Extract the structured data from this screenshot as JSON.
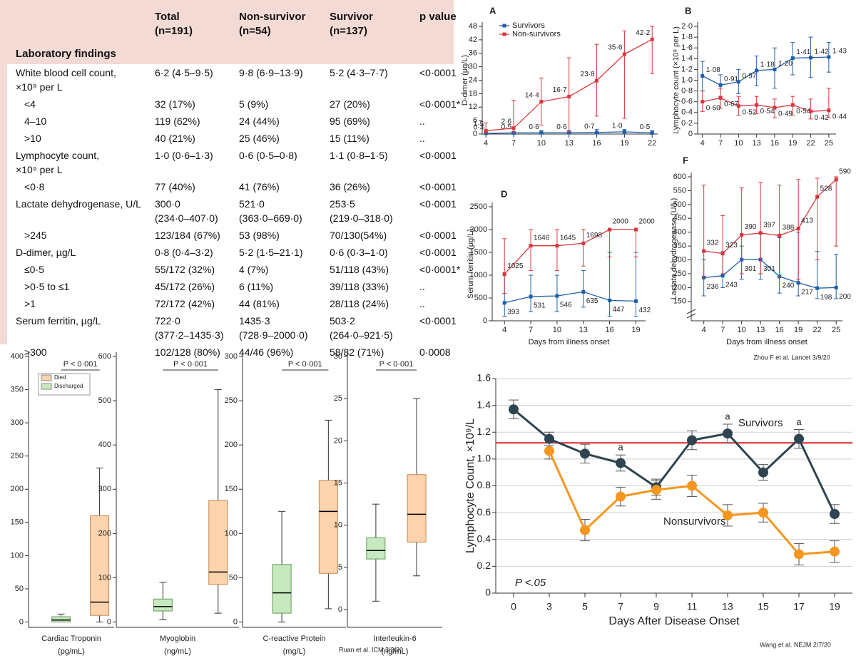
{
  "table": {
    "header": [
      "Total\n(n=191)",
      "Non-survivor\n(n=54)",
      "Survivor\n(n=137)",
      "p value"
    ],
    "section": "Laboratory findings",
    "rows": [
      [
        "White blood cell count,\n×10⁹ per L",
        "6·2 (4·5–9·5)",
        "9·8 (6·9–13·9)",
        "5·2 (4·3–7·7)",
        "<0·0001"
      ],
      [
        "<4",
        "32 (17%)",
        "5 (9%)",
        "27 (20%)",
        "<0·0001*"
      ],
      [
        "4–10",
        "119 (62%)",
        "24 (44%)",
        "95 (69%)",
        ".."
      ],
      [
        ">10",
        "40 (21%)",
        "25 (46%)",
        "15 (11%)",
        ".."
      ],
      [
        "Lymphocyte count,\n×10⁹ per L",
        "1·0 (0·6–1·3)",
        "0·6 (0·5–0·8)",
        "1·1 (0·8–1·5)",
        "<0·0001"
      ],
      [
        "<0·8",
        "77 (40%)",
        "41 (76%)",
        "36 (26%)",
        "<0·0001"
      ],
      [
        "Lactate dehydrogenase, U/L",
        "300·0\n(234·0–407·0)",
        "521·0\n(363·0–669·0)",
        "253·5\n(219·0–318·0)",
        "<0·0001"
      ],
      [
        ">245",
        "123/184 (67%)",
        "53 (98%)",
        "70/130(54%)",
        "<0·0001"
      ],
      [
        "D-dimer, µg/L",
        "0·8 (0·4–3·2)",
        "5·2 (1·5–21·1)",
        "0·6 (0·3–1·0)",
        "<0·0001"
      ],
      [
        "≤0·5",
        "55/172 (32%)",
        "4 (7%)",
        "51/118 (43%)",
        "<0·0001*"
      ],
      [
        ">0·5 to ≤1",
        "45/172 (26%)",
        "6 (11%)",
        "39/118 (33%)",
        ".."
      ],
      [
        ">1",
        "72/172 (42%)",
        "44 (81%)",
        "28/118 (24%)",
        ".."
      ],
      [
        "Serum ferritin, µg/L",
        "722·0\n(377·2–1435·3)",
        "1435·3\n(728·9–2000·0)",
        "503·2\n(264·0–921·5)",
        "<0·0001"
      ],
      [
        ">300",
        "102/128 (80%)",
        "44/46 (96%)",
        "58/82 (71%)",
        "0·0008"
      ]
    ]
  },
  "chart_data": [
    {
      "type": "line",
      "panel": "A",
      "ylabel": "D-dimer (μg/L)",
      "marker": "square",
      "legend": "upper left",
      "x": [
        4,
        7,
        10,
        13,
        16,
        19,
        22
      ],
      "xlim": [
        3.6,
        22.6
      ],
      "xticks": [
        4,
        7,
        10,
        13,
        16,
        19,
        22
      ],
      "ylim": [
        0,
        48
      ],
      "yticks": [
        0,
        6,
        12,
        18,
        24,
        30,
        36,
        42,
        48
      ],
      "series": [
        {
          "name": "Survivors",
          "color": "#1f5fa8",
          "values": [
            0.3,
            0.5,
            0.6,
            0.6,
            0.7,
            1.0,
            0.5
          ],
          "value_labels": [
            "0·3",
            "0·5",
            "0·6",
            "0·6",
            "0·7",
            "1·0",
            "0·5"
          ],
          "err_high": [
            1,
            1,
            1.5,
            1.5,
            2,
            2,
            1.5
          ],
          "err_low": [
            0,
            0.2,
            0.3,
            0.3,
            0.4,
            0.5,
            0.2
          ]
        },
        {
          "name": "Non-survivors",
          "color": "#d9363e",
          "values": [
            1.5,
            2.6,
            14.4,
            16.7,
            23.8,
            35.6,
            42.2
          ],
          "value_labels": [
            "1·5",
            "2·6",
            "14·4",
            "16·7",
            "23·8",
            "35·6",
            "42·2"
          ],
          "err_high": [
            5,
            15,
            25,
            34,
            40,
            46,
            48
          ],
          "err_low": [
            0.5,
            0.5,
            4,
            1,
            8,
            7,
            27
          ]
        }
      ]
    },
    {
      "type": "line",
      "panel": "B",
      "ylabel": "Lymphocyte count (×10⁹ per L)",
      "marker": "square",
      "x": [
        4,
        7,
        10,
        13,
        16,
        19,
        22,
        25
      ],
      "xlim": [
        3.2,
        26.2
      ],
      "xticks": [
        4,
        7,
        10,
        13,
        16,
        19,
        22,
        25
      ],
      "ylim": [
        0,
        2
      ],
      "yticks": [
        0,
        {
          "value": 0.2,
          "label": "0·2"
        },
        {
          "value": 0.4,
          "label": "0·4"
        },
        {
          "value": 0.6,
          "label": "0·6"
        },
        {
          "value": 0.8,
          "label": "0·8"
        },
        {
          "value": 1,
          "label": "1·0"
        },
        {
          "value": 1.2,
          "label": "1·2"
        },
        {
          "value": 1.4,
          "label": "1·4"
        },
        {
          "value": 1.6,
          "label": "1·6"
        },
        {
          "value": 1.8,
          "label": "1·8"
        },
        {
          "value": 2,
          "label": "2·0"
        }
      ],
      "series": [
        {
          "color": "#1f5fa8",
          "values": [
            1.08,
            0.91,
            0.97,
            1.18,
            1.2,
            1.41,
            1.42,
            1.43
          ],
          "value_labels": [
            "1·08",
            "0·91",
            "0·97",
            "1·18",
            "1·20",
            "1·41",
            "1·42",
            "1·43"
          ],
          "err_high": [
            1.35,
            1.1,
            1.2,
            1.45,
            1.6,
            1.7,
            1.8,
            1.7
          ],
          "err_low": [
            0.8,
            0.7,
            0.75,
            0.9,
            0.85,
            1.1,
            1.05,
            1.15
          ]
        },
        {
          "color": "#d9363e",
          "values": [
            0.6,
            0.67,
            0.52,
            0.54,
            0.49,
            0.54,
            0.42,
            0.44
          ],
          "value_labels": [
            "0·60",
            "0·67",
            "0·52",
            "0·54",
            "0·49",
            "0·54",
            "0·42",
            "0·44"
          ],
          "err_high": [
            0.8,
            0.85,
            0.7,
            0.7,
            0.65,
            0.7,
            0.65,
            0.85
          ],
          "err_low": [
            0.42,
            0.48,
            0.35,
            0.38,
            0.3,
            0.35,
            0.28,
            0.3
          ]
        }
      ]
    },
    {
      "type": "line",
      "panel": "D",
      "ylabel": "Serum ferritin (μg/L)",
      "xlabel": "Days from illness onset",
      "marker": "square",
      "x": [
        4,
        7,
        10,
        13,
        16,
        19
      ],
      "xlim": [
        2.6,
        20.1
      ],
      "xticks": [
        4,
        7,
        10,
        13,
        16,
        19
      ],
      "ylim": [
        0,
        2500
      ],
      "yticks": [
        0,
        500,
        1000,
        1500,
        2000,
        2500
      ],
      "series": [
        {
          "color": "#1f5fa8",
          "values": [
            393,
            531,
            546,
            635,
            447,
            432
          ],
          "err_high": [
            1000,
            1000,
            1000,
            1100,
            1500,
            1500
          ],
          "err_low": [
            100,
            200,
            200,
            300,
            100,
            100
          ]
        },
        {
          "color": "#d9363e",
          "values": [
            1025,
            1646,
            1645,
            1698,
            2000,
            2000
          ],
          "err_high": [
            1800,
            2000,
            2000,
            2000,
            2000,
            2000
          ],
          "err_low": [
            600,
            1100,
            1100,
            1200,
            1400,
            1400
          ]
        }
      ]
    },
    {
      "type": "line",
      "panel": "F",
      "ylabel": "Lactate dehydrogenase (U/L)",
      "xlabel": "Days from illness onset",
      "marker": "square",
      "source": "Zhou F et al.  Lancet 3/9/20",
      "x": [
        4,
        7,
        10,
        13,
        16,
        19,
        22,
        25
      ],
      "xlim": [
        2,
        26
      ],
      "xticks": [
        4,
        7,
        10,
        13,
        16,
        19,
        22,
        25
      ],
      "ylim": [
        80,
        600
      ],
      "yticks": [
        150,
        200,
        250,
        300,
        350,
        400,
        450,
        500,
        550,
        600
      ],
      "series": [
        {
          "color": "#1f5fa8",
          "values": [
            236,
            243,
            301,
            301,
            240,
            217,
            198,
            200
          ],
          "err_high": [
            300,
            330,
            350,
            400,
            380,
            400,
            330,
            320
          ],
          "err_low": [
            170,
            200,
            230,
            230,
            180,
            170,
            160,
            160
          ]
        },
        {
          "color": "#d9363e",
          "values": [
            332,
            323,
            390,
            397,
            388,
            413,
            528,
            590
          ],
          "err_high": [
            570,
            460,
            560,
            580,
            570,
            590,
            595,
            600
          ],
          "err_low": [
            240,
            250,
            250,
            250,
            240,
            230,
            300,
            350
          ]
        }
      ]
    },
    {
      "type": "box",
      "xlabel": [
        "Cardiac Troponin",
        "(pg/mL)"
      ],
      "annotation": "P < 0·001",
      "ylim": [
        -8,
        400
      ],
      "yticks": [
        0,
        50,
        100,
        150,
        200,
        250,
        300,
        350,
        400
      ],
      "series": [
        {
          "name": "Died",
          "color": "#fbd3ad",
          "whislo": 0,
          "q1": 10,
          "med": 30,
          "q3": 160,
          "whishi": 232
        },
        {
          "name": "Discharged",
          "color": "#c8e8c0",
          "whislo": 0,
          "q1": 0,
          "med": 3,
          "q3": 8,
          "whishi": 12
        }
      ]
    },
    {
      "type": "box",
      "xlabel": [
        "Myoglobin",
        "(ng/mL)"
      ],
      "annotation": "P < 0·001",
      "ylim": [
        -12,
        600
      ],
      "yticks": [
        0,
        100,
        200,
        300,
        400,
        500,
        600
      ],
      "series": [
        {
          "color": "#fbd3ad",
          "whislo": 20,
          "q1": 85,
          "med": 113,
          "q3": 275,
          "whishi": 525
        },
        {
          "color": "#c8e8c0",
          "whislo": 5,
          "q1": 25,
          "med": 35,
          "q3": 52,
          "whishi": 90
        }
      ]
    },
    {
      "type": "box",
      "xlabel": [
        "C-reactive Protein",
        "(mg/L)"
      ],
      "annotation": "P < 0·001",
      "ylim": [
        -6,
        300
      ],
      "yticks": [
        0,
        50,
        100,
        150,
        200,
        250,
        300
      ],
      "series": [
        {
          "color": "#fbd3ad",
          "whislo": 15,
          "q1": 55,
          "med": 125,
          "q3": 160,
          "whishi": 228
        },
        {
          "color": "#c8e8c0",
          "whislo": 0,
          "q1": 10,
          "med": 33,
          "q3": 65,
          "whishi": 125
        }
      ]
    },
    {
      "type": "box",
      "xlabel": [
        "Interleukin-6",
        "(ng/mL)"
      ],
      "annotation": "P < 0·001",
      "source": "Ruan et al. ICM  3/3/20",
      "ylim": [
        -2.1,
        30
      ],
      "yticks": [
        0,
        5,
        10,
        15,
        20,
        25,
        30
      ],
      "series": [
        {
          "color": "#fbd3ad",
          "whislo": 4,
          "q1": 8,
          "med": 11.3,
          "q3": 16,
          "whishi": 25
        },
        {
          "color": "#c8e8c0",
          "whislo": 1,
          "q1": 6,
          "med": 7,
          "q3": 8.5,
          "whishi": 12.5
        }
      ]
    },
    {
      "type": "line",
      "ylabel": "Lymphocyte Count, ×10⁹/L",
      "xlabel": "Days After Disease Onset",
      "marker": "circle",
      "grid": true,
      "note": "P <.05",
      "annotations": [
        "a",
        "a",
        "a"
      ],
      "source": "Wang et al.  NEJM 2/7/20",
      "reference_line": {
        "value": 1.12,
        "color": "#e0262b"
      },
      "categories": [
        "0",
        "3",
        "5",
        "7",
        "9",
        "11",
        "13",
        "15",
        "17",
        "19"
      ],
      "ylim": [
        0,
        1.6
      ],
      "yticks": [
        0,
        0.2,
        0.4,
        0.6,
        0.8,
        {
          "value": 1,
          "label": "1.0"
        },
        1.2,
        1.4,
        1.6
      ],
      "series": [
        {
          "name": "Survivors",
          "color": "#2e4450",
          "values": [
            1.37,
            1.15,
            1.04,
            0.97,
            0.79,
            1.14,
            1.19,
            0.9,
            1.15,
            0.59
          ],
          "error": [
            0.07,
            0.05,
            0.07,
            0.06,
            0.06,
            0.07,
            0.07,
            0.06,
            0.07,
            0.07
          ]
        },
        {
          "name": "Nonsurvivors",
          "color": "#f5961e",
          "values": [
            null,
            1.06,
            0.47,
            0.72,
            0.77,
            0.8,
            0.58,
            0.6,
            0.29,
            0.31
          ],
          "error": [
            null,
            0.06,
            0.08,
            0.07,
            0.07,
            0.08,
            0.08,
            0.07,
            0.08,
            0.08
          ]
        }
      ]
    }
  ]
}
